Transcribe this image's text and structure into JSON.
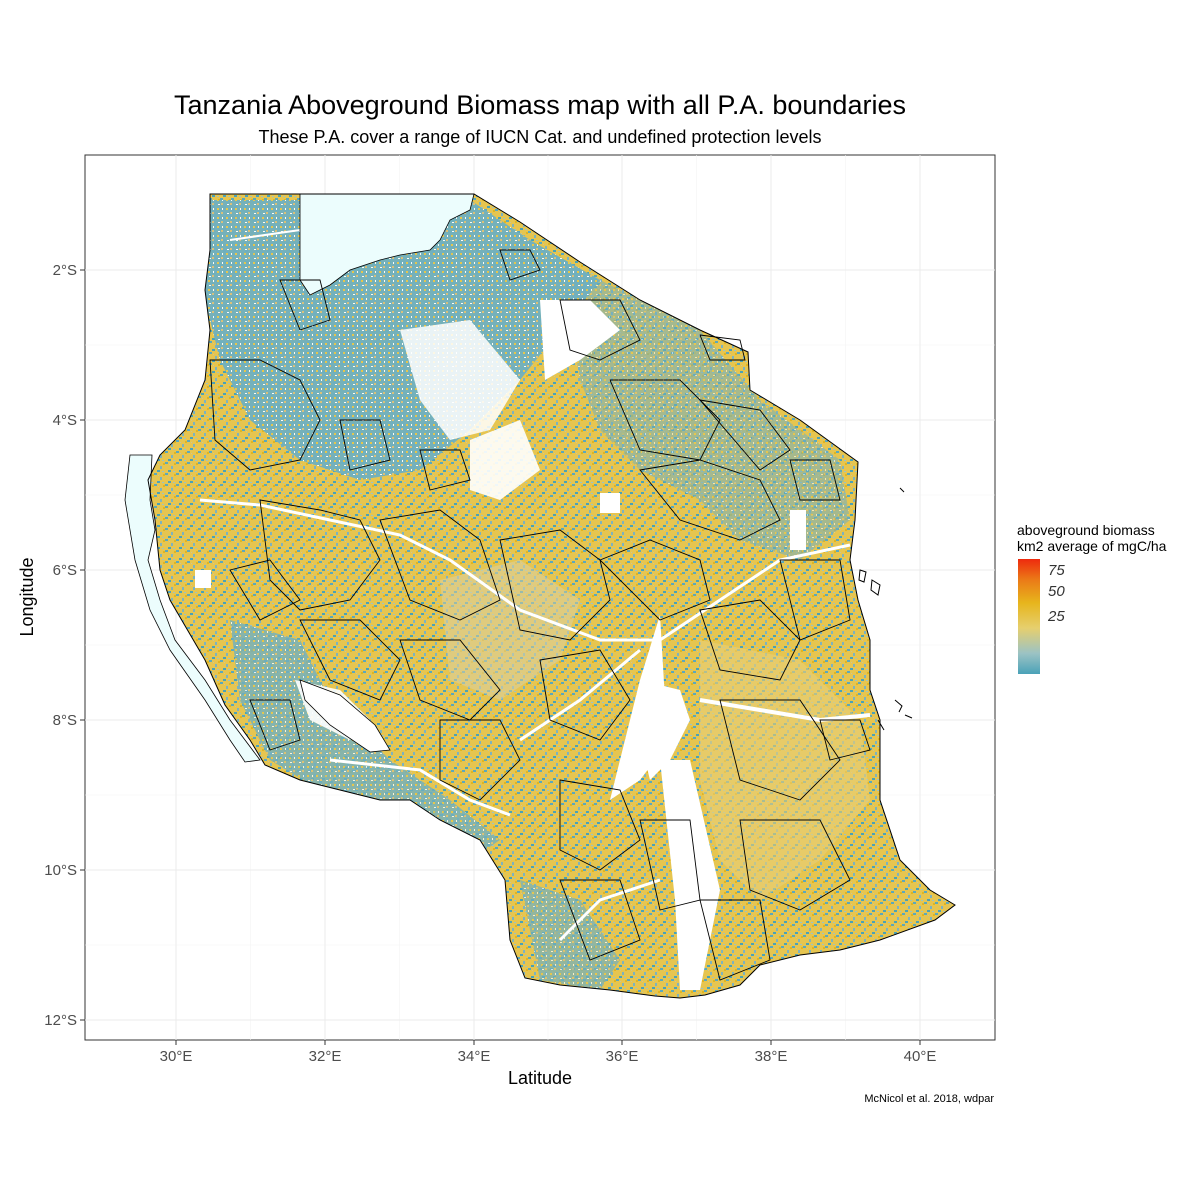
{
  "title": "Tanzania Aboveground Biomass map with all P.A. boundaries",
  "subtitle": "These P.A. cover a range of IUCN Cat. and undefined protection levels",
  "axes": {
    "x_title": "Latitude",
    "y_title": "Longitude",
    "x_ticks": [
      "30°E",
      "32°E",
      "34°E",
      "36°E",
      "38°E",
      "40°E"
    ],
    "y_ticks": [
      "2°S",
      "4°S",
      "6°S",
      "8°S",
      "10°S",
      "12°S"
    ]
  },
  "legend": {
    "title_line1": "aboveground biomass",
    "title_line2": "km2 average of mgC/ha",
    "labels": [
      "75",
      "50",
      "25"
    ]
  },
  "caption": "McNicol et al. 2018, wdpar",
  "colors": {
    "low": "#4aa2b8",
    "mid": "#e7b51c",
    "high": "#ee2a0e",
    "lake": "#ecfdfd",
    "grid": "#ebebeb"
  }
}
